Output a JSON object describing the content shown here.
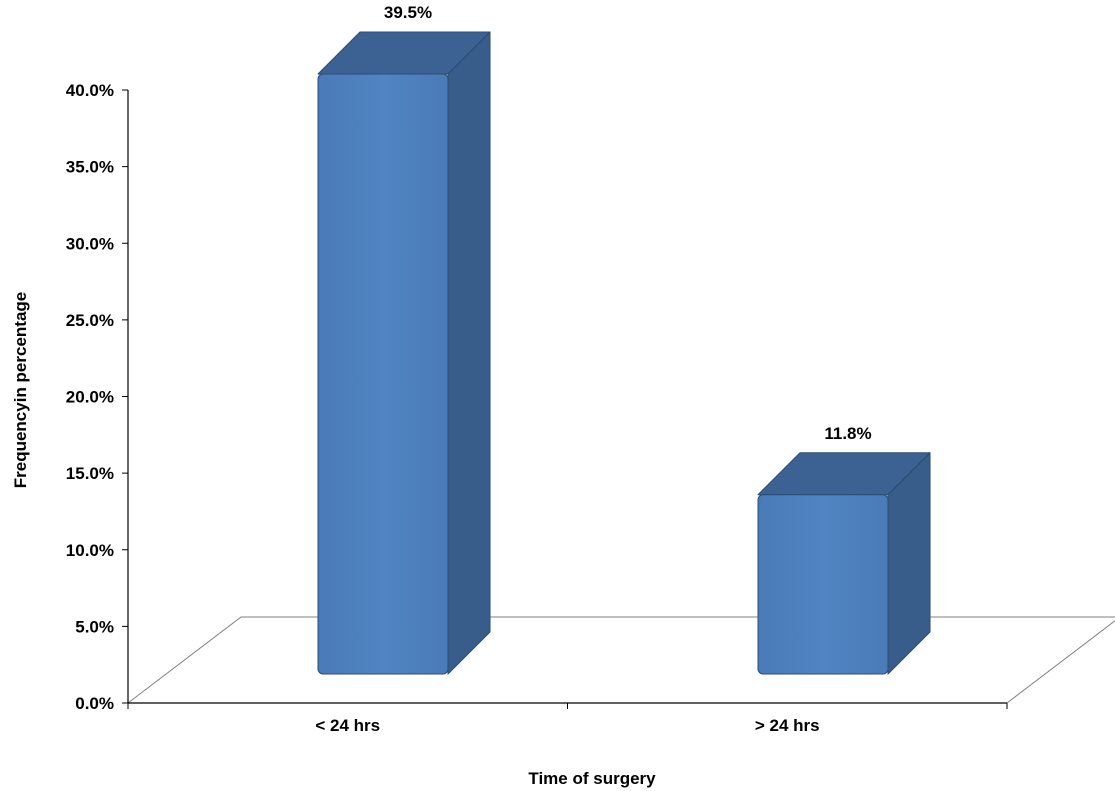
{
  "chart_data": {
    "type": "bar",
    "style": "3d-column",
    "categories": [
      "< 24 hrs",
      "> 24 hrs"
    ],
    "values": [
      39.5,
      11.8
    ],
    "data_labels": [
      "39.5%",
      "11.8%"
    ],
    "xlabel": "Time of surgery",
    "ylabel": "Frequencyin percentage",
    "ylim": [
      0,
      40
    ],
    "yticks": [
      0,
      5,
      10,
      15,
      20,
      25,
      30,
      35,
      40
    ],
    "ytick_labels": [
      "0.0%",
      "5.0%",
      "10.0%",
      "15.0%",
      "20.0%",
      "25.0%",
      "30.0%",
      "35.0%",
      "40.0%"
    ],
    "grid": false,
    "legend": "none",
    "colors": {
      "bar_front": "#4f81bd",
      "bar_side": "#385d8a",
      "bar_top": "#3b6292",
      "bar_edge": "#2c4d75",
      "axis": "#000000",
      "floor": "#7f7f7f"
    }
  }
}
